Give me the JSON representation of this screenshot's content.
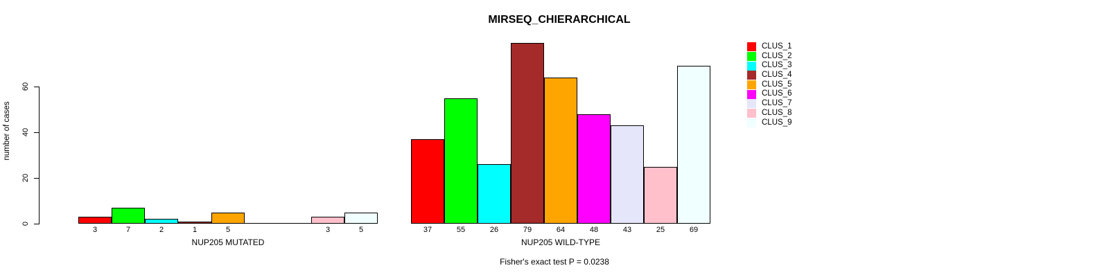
{
  "figure": {
    "title": "MIRSEQ_CHIERARCHICAL",
    "y_axis_title": "number of cases",
    "annotation": "Fisher's exact test P = 0.0238"
  },
  "chart_data": {
    "type": "bar",
    "title": "MIRSEQ_CHIERARCHICAL",
    "xlabel": "",
    "ylabel": "number of cases",
    "categories": [
      "NUP205 MUTATED",
      "NUP205 WILD-TYPE"
    ],
    "series": [
      {
        "name": "CLUS_1",
        "color": "#FF0000",
        "values": [
          3,
          37
        ]
      },
      {
        "name": "CLUS_2",
        "color": "#00FF00",
        "values": [
          7,
          55
        ]
      },
      {
        "name": "CLUS_3",
        "color": "#00FFFF",
        "values": [
          2,
          26
        ]
      },
      {
        "name": "CLUS_4",
        "color": "#A52A2A",
        "values": [
          1,
          79
        ]
      },
      {
        "name": "CLUS_5",
        "color": "#FFA500",
        "values": [
          5,
          64
        ]
      },
      {
        "name": "CLUS_6",
        "color": "#FF00FF",
        "values": [
          0,
          48
        ]
      },
      {
        "name": "CLUS_7",
        "color": "#E6E6FA",
        "values": [
          0,
          43
        ]
      },
      {
        "name": "CLUS_8",
        "color": "#FFC0CB",
        "values": [
          3,
          25
        ]
      },
      {
        "name": "CLUS_9",
        "color": "#F0FFFF",
        "values": [
          5,
          69
        ]
      }
    ],
    "yticks": [
      0,
      20,
      40,
      60
    ],
    "ylim": [
      0,
      79
    ],
    "grid": false,
    "legend_position": "right",
    "bar_value_labels_shown": true,
    "zero_bars_drawn_as_baseline_segments": true,
    "annotation": "Fisher's exact test P = 0.0238"
  }
}
